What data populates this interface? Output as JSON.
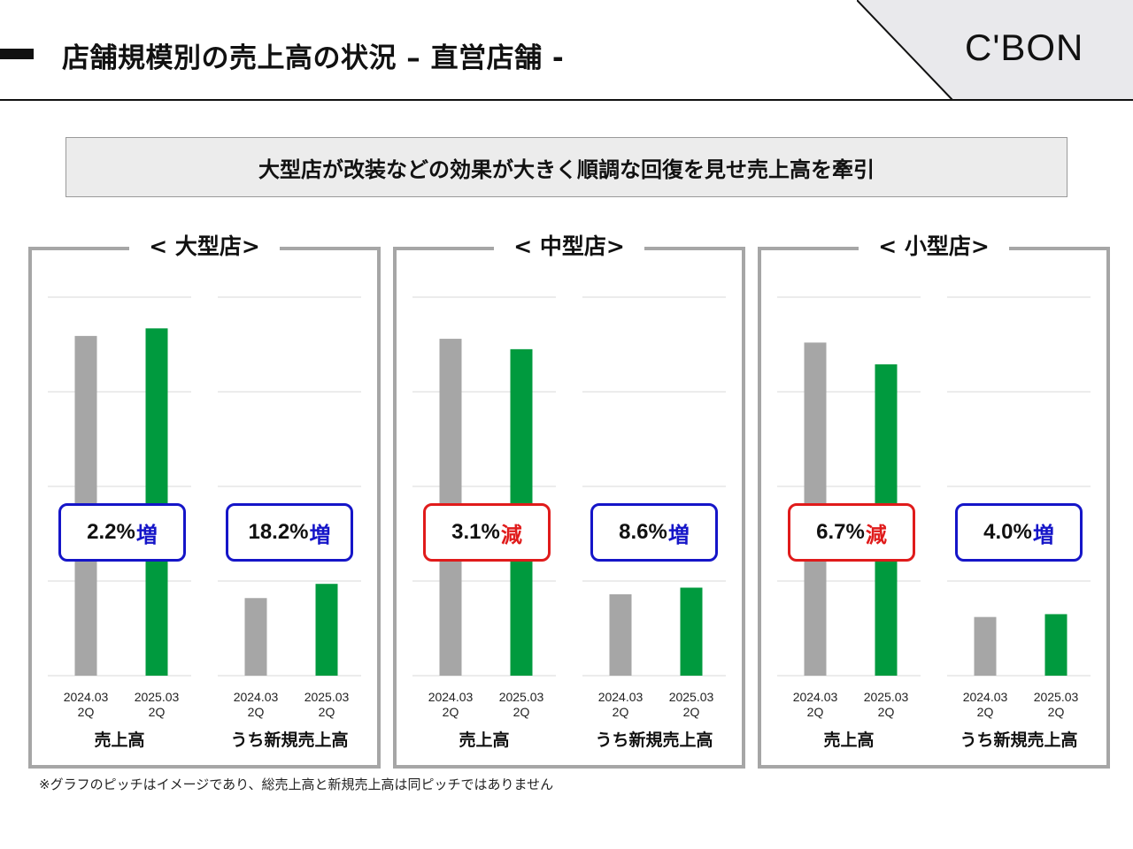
{
  "header": {
    "title": "店舗規模別の売上高の状況 – 直営店舗 -",
    "logo": "C'BON"
  },
  "summary": "大型店が改装などの効果が大きく順調な回復を見せ売上高を牽引",
  "colors": {
    "prior_bar": "#a6a6a6",
    "current_bar": "#009a3e",
    "increase": "#1515c8",
    "decrease": "#e01b1b",
    "panel_border": "#a6a6a6",
    "gridline": "#d9d9d9"
  },
  "chart_data": [
    {
      "type": "bar",
      "title": "< 大型店>",
      "groups": [
        {
          "label": "売上高",
          "categories": [
            {
              "period": "2024.03",
              "quarter": "2Q"
            },
            {
              "period": "2025.03",
              "quarter": "2Q"
            }
          ],
          "values": [
            3.59,
            3.67
          ],
          "ylim": [
            0,
            4
          ],
          "change": {
            "value": "2.2%",
            "direction": "増",
            "type": "increase"
          }
        },
        {
          "label": "うち新規売上高",
          "categories": [
            {
              "period": "2024.03",
              "quarter": "2Q"
            },
            {
              "period": "2025.03",
              "quarter": "2Q"
            }
          ],
          "values": [
            0.82,
            0.97
          ],
          "ylim": [
            0,
            4
          ],
          "change": {
            "value": "18.2%",
            "direction": "増",
            "type": "increase"
          }
        }
      ]
    },
    {
      "type": "bar",
      "title": "< 中型店>",
      "groups": [
        {
          "label": "売上高",
          "categories": [
            {
              "period": "2024.03",
              "quarter": "2Q"
            },
            {
              "period": "2025.03",
              "quarter": "2Q"
            }
          ],
          "values": [
            3.56,
            3.45
          ],
          "ylim": [
            0,
            4
          ],
          "change": {
            "value": "3.1%",
            "direction": "減",
            "type": "decrease"
          }
        },
        {
          "label": "うち新規売上高",
          "categories": [
            {
              "period": "2024.03",
              "quarter": "2Q"
            },
            {
              "period": "2025.03",
              "quarter": "2Q"
            }
          ],
          "values": [
            0.86,
            0.93
          ],
          "ylim": [
            0,
            4
          ],
          "change": {
            "value": "8.6%",
            "direction": "増",
            "type": "increase"
          }
        }
      ]
    },
    {
      "type": "bar",
      "title": "< 小型店>",
      "groups": [
        {
          "label": "売上高",
          "categories": [
            {
              "period": "2024.03",
              "quarter": "2Q"
            },
            {
              "period": "2025.03",
              "quarter": "2Q"
            }
          ],
          "values": [
            3.52,
            3.29
          ],
          "ylim": [
            0,
            4
          ],
          "change": {
            "value": "6.7%",
            "direction": "減",
            "type": "decrease"
          }
        },
        {
          "label": "うち新規売上高",
          "categories": [
            {
              "period": "2024.03",
              "quarter": "2Q"
            },
            {
              "period": "2025.03",
              "quarter": "2Q"
            }
          ],
          "values": [
            0.62,
            0.65
          ],
          "ylim": [
            0,
            4
          ],
          "change": {
            "value": "4.0%",
            "direction": "増",
            "type": "increase"
          }
        }
      ]
    }
  ],
  "footnote": "※グラフのピッチはイメージであり、総売上高と新規売上高は同ピッチではありません"
}
